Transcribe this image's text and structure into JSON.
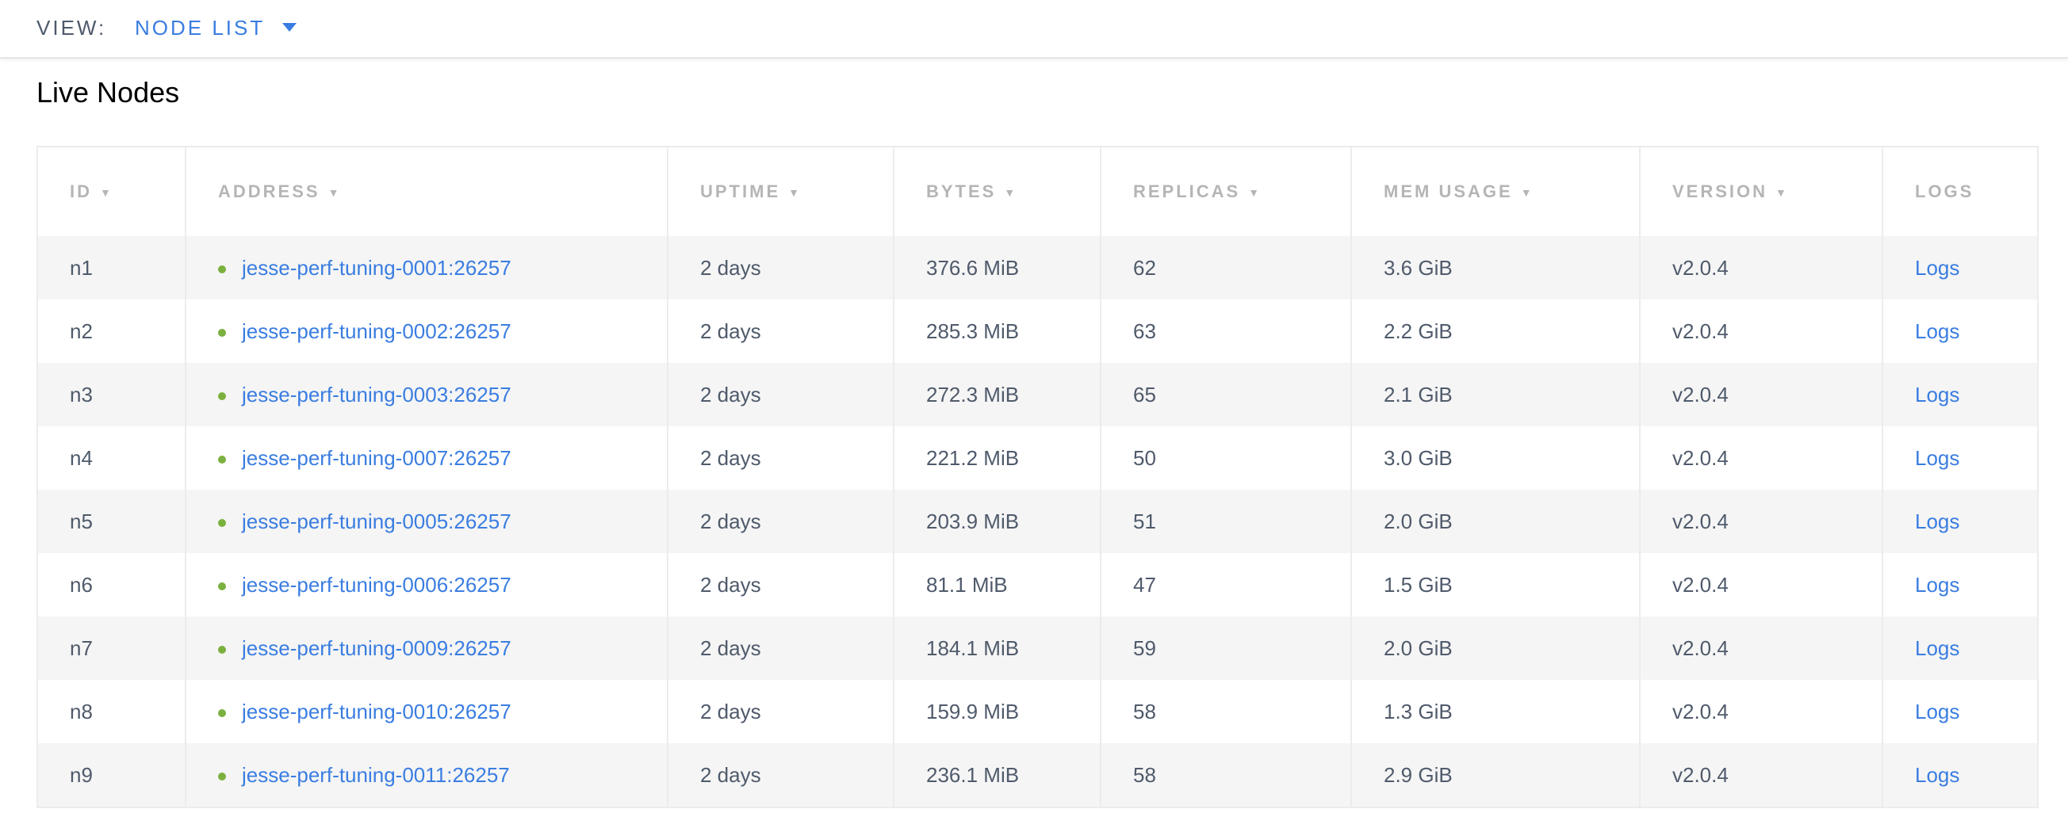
{
  "header": {
    "view_label": "VIEW:",
    "view_value": "NODE LIST"
  },
  "title": "Live Nodes",
  "columns": [
    {
      "label": "ID",
      "sortable": true
    },
    {
      "label": "ADDRESS",
      "sortable": true
    },
    {
      "label": "UPTIME",
      "sortable": true
    },
    {
      "label": "BYTES",
      "sortable": true
    },
    {
      "label": "REPLICAS",
      "sortable": true
    },
    {
      "label": "MEM USAGE",
      "sortable": true
    },
    {
      "label": "VERSION",
      "sortable": true
    },
    {
      "label": "LOGS",
      "sortable": false
    }
  ],
  "sort_indicator": "▼",
  "status_color": "#7bb03f",
  "rows": [
    {
      "id": "n1",
      "address": "jesse-perf-tuning-0001:26257",
      "uptime": "2 days",
      "bytes": "376.6 MiB",
      "replicas": "62",
      "mem": "3.6 GiB",
      "version": "v2.0.4",
      "logs": "Logs"
    },
    {
      "id": "n2",
      "address": "jesse-perf-tuning-0002:26257",
      "uptime": "2 days",
      "bytes": "285.3 MiB",
      "replicas": "63",
      "mem": "2.2 GiB",
      "version": "v2.0.4",
      "logs": "Logs"
    },
    {
      "id": "n3",
      "address": "jesse-perf-tuning-0003:26257",
      "uptime": "2 days",
      "bytes": "272.3 MiB",
      "replicas": "65",
      "mem": "2.1 GiB",
      "version": "v2.0.4",
      "logs": "Logs"
    },
    {
      "id": "n4",
      "address": "jesse-perf-tuning-0007:26257",
      "uptime": "2 days",
      "bytes": "221.2 MiB",
      "replicas": "50",
      "mem": "3.0 GiB",
      "version": "v2.0.4",
      "logs": "Logs"
    },
    {
      "id": "n5",
      "address": "jesse-perf-tuning-0005:26257",
      "uptime": "2 days",
      "bytes": "203.9 MiB",
      "replicas": "51",
      "mem": "2.0 GiB",
      "version": "v2.0.4",
      "logs": "Logs"
    },
    {
      "id": "n6",
      "address": "jesse-perf-tuning-0006:26257",
      "uptime": "2 days",
      "bytes": "81.1 MiB",
      "replicas": "47",
      "mem": "1.5 GiB",
      "version": "v2.0.4",
      "logs": "Logs"
    },
    {
      "id": "n7",
      "address": "jesse-perf-tuning-0009:26257",
      "uptime": "2 days",
      "bytes": "184.1 MiB",
      "replicas": "59",
      "mem": "2.0 GiB",
      "version": "v2.0.4",
      "logs": "Logs"
    },
    {
      "id": "n8",
      "address": "jesse-perf-tuning-0010:26257",
      "uptime": "2 days",
      "bytes": "159.9 MiB",
      "replicas": "58",
      "mem": "1.3 GiB",
      "version": "v2.0.4",
      "logs": "Logs"
    },
    {
      "id": "n9",
      "address": "jesse-perf-tuning-0011:26257",
      "uptime": "2 days",
      "bytes": "236.1 MiB",
      "replicas": "58",
      "mem": "2.9 GiB",
      "version": "v2.0.4",
      "logs": "Logs"
    }
  ]
}
